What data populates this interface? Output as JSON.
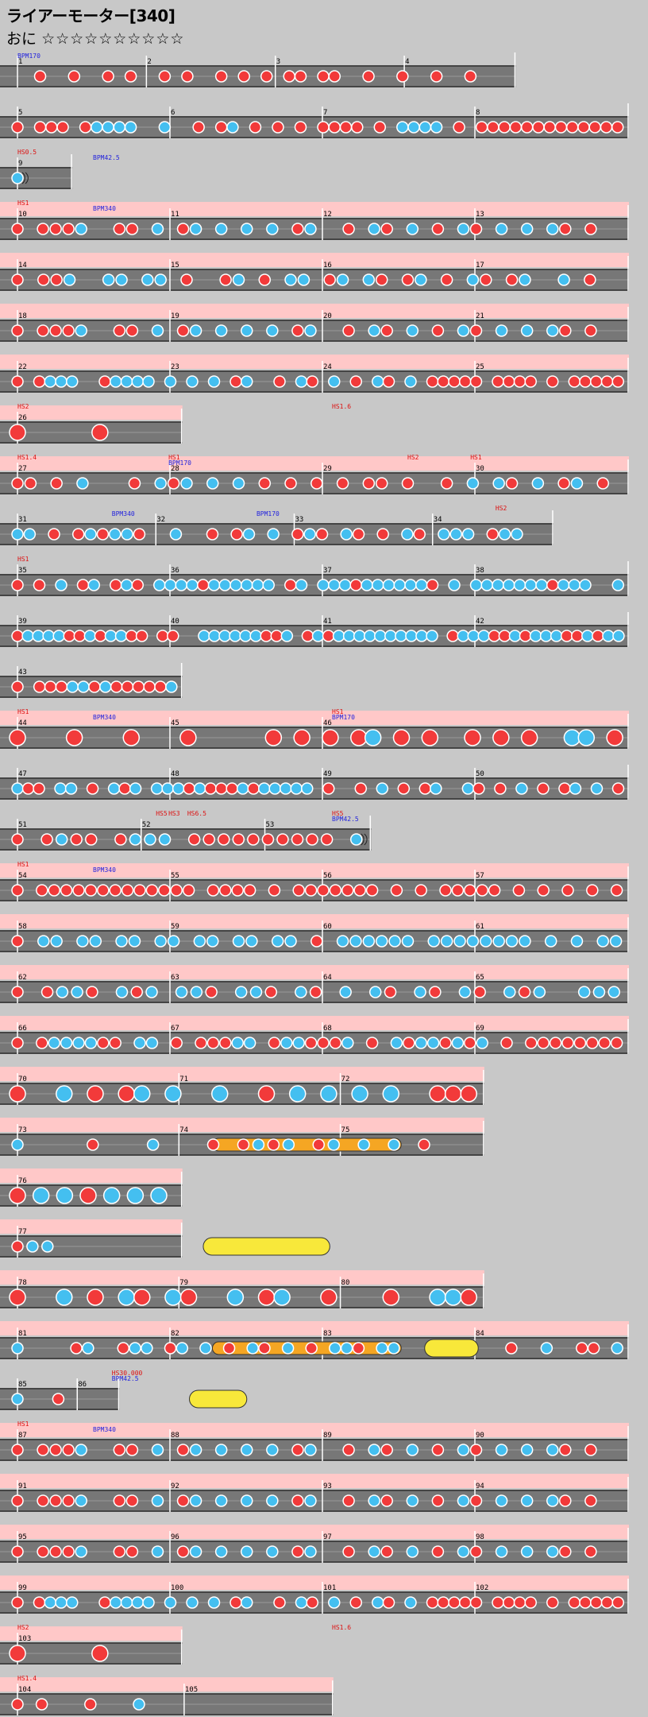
{
  "header": {
    "title": "ライアーモーター[340]",
    "difficulty_label": "おに",
    "stars": "☆☆☆☆☆☆☆☆☆☆"
  },
  "colors": {
    "don": "#f23a3a",
    "ka": "#44bff0",
    "drumroll": "#f5a623",
    "balloon": "#f8e83a",
    "lane": "#777777",
    "lane_edge": "#444444",
    "gogo": "#ffc8c8",
    "bpm_text": "#2222dd",
    "hs_text": "#dd1111",
    "measure_text": "#000000"
  },
  "rows": [
    {
      "measures": [
        "1",
        "2",
        "3",
        "4"
      ],
      "end": 0.82,
      "events": [
        [
          "BPM170",
          0,
          "b"
        ]
      ],
      "gogo": false,
      "notes": "  D  D  D D  D D  D D D DD DD  D  D  D  D   "
    },
    {
      "measures": [
        "5",
        "6",
        "7",
        "8"
      ],
      "end": 1.0,
      "gogo": false,
      "notes": "D DDD DKKKK  K  D DK D D D DDDD D KKKK D DDDDDDDDDDDDD"
    },
    {
      "measures": [
        "9"
      ],
      "end": 0.115,
      "events": [
        [
          "HS0.5",
          0,
          "h"
        ],
        [
          "BPM42.5",
          0.12,
          "b"
        ]
      ],
      "gogo": false,
      "notes": "R"
    },
    {
      "measures": [
        "10",
        "11",
        "12",
        "13"
      ],
      "end": 1.0,
      "events": [
        [
          "HS1",
          0,
          "h"
        ],
        [
          "BPM340",
          0.12,
          "b"
        ]
      ],
      "gogo": true,
      "notes": "D DDDK  DD K DK K K K DK  D KD K D KD K K KD D  "
    },
    {
      "measures": [
        "14",
        "15",
        "16",
        "17"
      ],
      "end": 1.0,
      "gogo": true,
      "notes": "D DDK  KK KK D  DK D KK DK KD DK D KD DK  K D  "
    },
    {
      "measures": [
        "18",
        "19",
        "20",
        "21"
      ],
      "end": 1.0,
      "gogo": true,
      "notes": "D DDDK  DD K DK K K K DK  D KD K D KD K K KD D  "
    },
    {
      "measures": [
        "22",
        "23",
        "24",
        "25"
      ],
      "end": 1.0,
      "gogo": true,
      "notes": "D DKKK  DKKKK K K K DK  D KD K D KD K DDDDD DDDD D DDDDD"
    },
    {
      "measures": [
        "26"
      ],
      "end": 0.29,
      "events": [
        [
          "HS2",
          0,
          "h"
        ],
        [
          "HS1.6",
          0.5,
          "h"
        ]
      ],
      "gogo": true,
      "big": true,
      "notes": "D   D   "
    },
    {
      "measures": [
        "27",
        "28",
        "29",
        "30"
      ],
      "end": 1.0,
      "events": [
        [
          "HS1.4",
          0,
          "h"
        ],
        [
          "HS1",
          0.24,
          "h"
        ],
        [
          "BPM170",
          0.24,
          "b"
        ],
        [
          "HS2",
          0.62,
          "h"
        ],
        [
          "HS1",
          0.72,
          "h"
        ]
      ],
      "gogo": true,
      "notes": "DD D K   D KDK K K D D D D DD D  D K KD K DK D "
    },
    {
      "measures": [
        "31",
        "32",
        "33",
        "34"
      ],
      "end": 0.88,
      "events": [
        [
          "BPM340",
          0.15,
          "b"
        ],
        [
          "BPM170",
          0.38,
          "b"
        ],
        [
          "HS2",
          0.76,
          "h"
        ]
      ],
      "gogo": false,
      "notes": "KK D DKDKKD  K  D DK K DKD KD D KD KKK DKK  "
    },
    {
      "measures": [
        "35",
        "36",
        "37",
        "38"
      ],
      "end": 1.0,
      "events": [
        [
          "HS1",
          0,
          "h"
        ]
      ],
      "gogo": false,
      "notes": "D D K DK DKD KKKKDKKKKKK DK KKKDKKKKKKD K KKKKKKKDKKK  K"
    },
    {
      "measures": [
        "39",
        "40",
        "41",
        "42"
      ],
      "end": 1.0,
      "gogo": false,
      "notes": "DKKKKDDKDKKDD DD  KKKKKKDDK DKDKKKKKKKKKK DKKKDDKDKKKDDKDKK"
    },
    {
      "measures": [
        "43"
      ],
      "end": 0.29,
      "gogo": false,
      "notes": "D DDDKKDKDDDDDK"
    },
    {
      "measures": [
        "44",
        "45",
        "46"
      ],
      "end": 1.0,
      "events": [
        [
          "HS1",
          0,
          "h"
        ],
        [
          "BPM340",
          0.12,
          "b"
        ],
        [
          "HS1",
          0.5,
          "h"
        ],
        [
          "BPM170",
          0.5,
          "b"
        ]
      ],
      "gogo": true,
      "big": true,
      "notes": "D   D   D   D     D D D DK D D  D D D  KK D"
    },
    {
      "measures": [
        "47",
        "48",
        "49",
        "50"
      ],
      "end": 1.0,
      "gogo": false,
      "notes": "KDD KK D KDK KKKDKDDDKDKKKKK D  D K D DK  KD D K D DK K D"
    },
    {
      "measures": [
        "51",
        "52",
        "53"
      ],
      "end": 0.59,
      "events": [
        [
          "HS5",
          0.22,
          "h"
        ],
        [
          "HS3",
          0.24,
          "h"
        ],
        [
          "HS6.5",
          0.27,
          "h"
        ],
        [
          "HS5",
          0.5,
          "h"
        ],
        [
          "BPM42.5",
          0.5,
          "b"
        ]
      ],
      "gogo": false,
      "notes": "D DKDD DKKK DDDDDDDDDD R"
    },
    {
      "measures": [
        "54",
        "55",
        "56",
        "57"
      ],
      "end": 1.0,
      "events": [
        [
          "HS1",
          0,
          "h"
        ],
        [
          "BPM340",
          0.12,
          "b"
        ]
      ],
      "gogo": true,
      "notes": "D DDDDDDDDDDDDD DDDD D DDDDDDD D D DDDDD D D D D D"
    },
    {
      "measures": [
        "58",
        "59",
        "60",
        "61"
      ],
      "end": 1.0,
      "gogo": true,
      "notes": "D KK KK KK KK KK KK KK D KKKKKK KKKKKKKK K K KK"
    },
    {
      "measures": [
        "62",
        "63",
        "64",
        "65"
      ],
      "end": 1.0,
      "gogo": true,
      "notes": "D DKKD KDK KKD KKD KD K KD KD KD KDK  KKK"
    },
    {
      "measures": [
        "66",
        "67",
        "68",
        "69"
      ],
      "end": 1.0,
      "gogo": true,
      "notes": "D DKKKKDD KK D DDDKK DKKDDDK D KDKKDKDK D DDDDDDDD"
    },
    {
      "measures": [
        "70",
        "71",
        "72"
      ],
      "end": 0.77,
      "gogo": true,
      "big": true,
      "notes": "D  K D DK K  K  D K K K K  DDD"
    },
    {
      "measures": [
        "73",
        "74",
        "75"
      ],
      "end": 0.77,
      "gogo": true,
      "roll": [
        0.08,
        0.15
      ],
      "notes": "K    D   K   D DKDK DK K K D   "
    },
    {
      "measures": [
        "76"
      ],
      "end": 0.29,
      "gogo": true,
      "big": true,
      "notes": "DKKDKKK"
    },
    {
      "measures": [
        "77"
      ],
      "end": 0.29,
      "gogo": true,
      "balloon": [
        0.14,
        0.22
      ],
      "notes": "DKK        "
    },
    {
      "measures": [
        "78",
        "79",
        "80"
      ],
      "end": 0.77,
      "gogo": true,
      "big": true,
      "notes": "D  K D KD KD  K DK  D   D  KKD"
    },
    {
      "measures": [
        "81",
        "82",
        "83",
        "84"
      ],
      "end": 1.0,
      "gogo": true,
      "roll": [
        0.08,
        0.15
      ],
      "balloon": [
        0.66,
        0.72
      ],
      "notes": "K    DK  DKK DK K D KD K D KKD KK         D  K  DD K"
    },
    {
      "measures": [
        "85",
        "86"
      ],
      "end": 0.19,
      "events": [
        [
          "HS30.000",
          0.15,
          "h"
        ],
        [
          "BPM42.5",
          0.15,
          "b"
        ]
      ],
      "gogo": false,
      "balloon": [
        0.13,
        0.16
      ],
      "notes": "K D  "
    },
    {
      "measures": [
        "87",
        "88",
        "89",
        "90"
      ],
      "end": 1.0,
      "events": [
        [
          "HS1",
          0,
          "h"
        ],
        [
          "BPM340",
          0.12,
          "b"
        ]
      ],
      "gogo": true,
      "notes": "D DDDK  DD K DK K K K DK  D KD K D KD K K KD D  "
    },
    {
      "measures": [
        "91",
        "92",
        "93",
        "94"
      ],
      "end": 1.0,
      "gogo": true,
      "notes": "D DDDK  DD K DK K K K DK  D KD K D KD K K KD D  "
    },
    {
      "measures": [
        "95",
        "96",
        "97",
        "98"
      ],
      "end": 1.0,
      "gogo": true,
      "notes": "D DDDK  DD K DK K K K DK  D KD K D KD K K KD D  "
    },
    {
      "measures": [
        "99",
        "100",
        "101",
        "102"
      ],
      "end": 1.0,
      "gogo": true,
      "notes": "D DKKK  DKKKK K K K DK  D KD K D KD K DDDDD DDDD D DDDDD"
    },
    {
      "measures": [
        "103"
      ],
      "end": 0.29,
      "events": [
        [
          "HS2",
          0,
          "h"
        ],
        [
          "HS1.6",
          0.5,
          "h"
        ]
      ],
      "gogo": true,
      "big": true,
      "notes": "D   D   "
    },
    {
      "measures": [
        "104",
        "105"
      ],
      "end": 0.53,
      "events": [
        [
          "HS1.4",
          0,
          "h"
        ]
      ],
      "gogo": true,
      "notes": "DD D K       "
    }
  ]
}
